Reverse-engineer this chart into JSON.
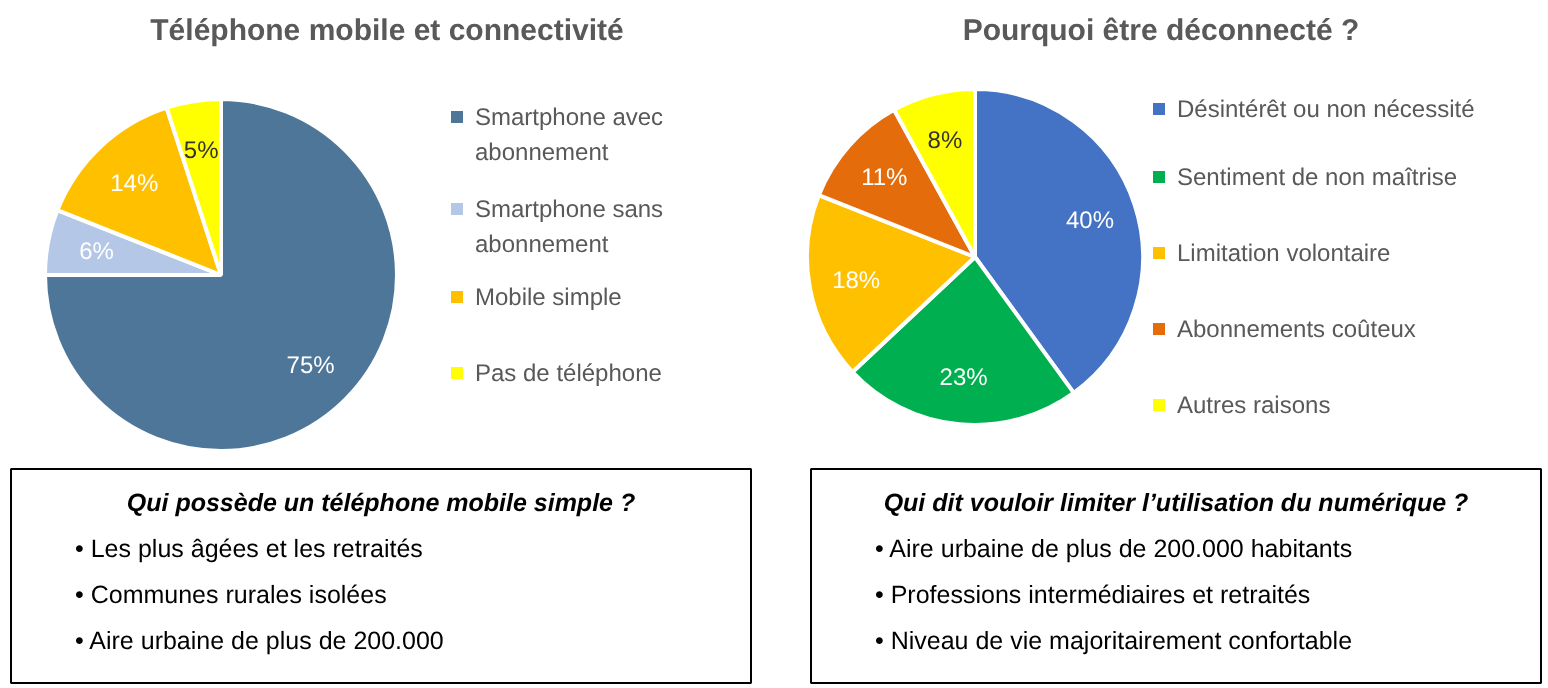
{
  "chart_data": [
    {
      "type": "pie",
      "title": "Téléphone mobile et connectivité",
      "categories": [
        "Smartphone avec abonnement",
        "Smartphone sans abonnement",
        "Mobile simple",
        "Pas de téléphone"
      ],
      "values": [
        75,
        6,
        14,
        5
      ],
      "colors": [
        "#4e7698",
        "#b4c7e7",
        "#ffc000",
        "#ffff00"
      ],
      "value_labels": [
        "75%",
        "6%",
        "14%",
        "5%"
      ],
      "legend": "right"
    },
    {
      "type": "pie",
      "title": "Pourquoi être déconnecté ?",
      "categories": [
        "Désintérêt ou non nécessité",
        "Sentiment de non maîtrise",
        "Limitation volontaire",
        "Abonnements coûteux",
        "Autres raisons"
      ],
      "values": [
        40,
        23,
        18,
        11,
        8
      ],
      "colors": [
        "#4472c4",
        "#00b050",
        "#ffc000",
        "#e46c0a",
        "#ffff00"
      ],
      "value_labels": [
        "40%",
        "23%",
        "18%",
        "11%",
        "8%"
      ],
      "legend": "right"
    },
    {
      "type": "other",
      "title": "Qui possède un téléphone mobile simple ?",
      "annotations": [
        "•      Les plus âgées et les retraités",
        "•      Communes rurales isolées",
        "•      Aire urbaine de plus de 200.000"
      ]
    },
    {
      "type": "other",
      "title": "Qui dit vouloir limiter l’utilisation du numérique ?",
      "annotations": [
        "•      Aire urbaine de plus de 200.000 habitants",
        "•      Professions intermédiaires et retraités",
        "•      Niveau de vie majoritairement confortable"
      ]
    }
  ]
}
